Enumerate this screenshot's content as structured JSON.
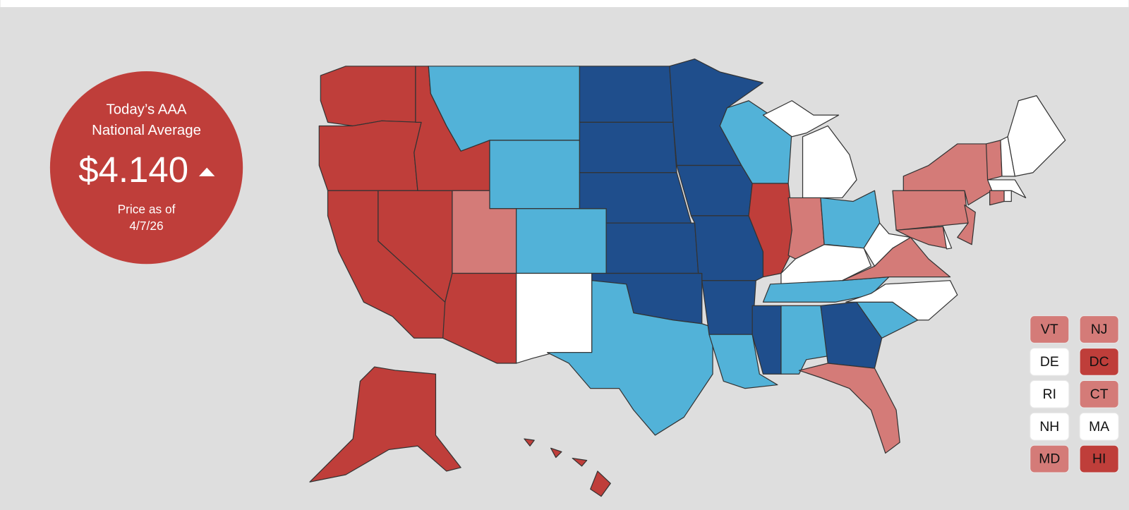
{
  "badge": {
    "line1": "Today’s AAA",
    "line2": "National Average",
    "price": "$4.140",
    "note_line1": "Price as of",
    "note_line2": "4/7/26"
  },
  "small_states": [
    {
      "label": "VT",
      "color": "#d47b78"
    },
    {
      "label": "NJ",
      "color": "#d47b78"
    },
    {
      "label": "DE",
      "color": "#ffffff"
    },
    {
      "label": "DC",
      "color": "#bf3e3a"
    },
    {
      "label": "RI",
      "color": "#ffffff"
    },
    {
      "label": "CT",
      "color": "#d47b78"
    },
    {
      "label": "NH",
      "color": "#ffffff"
    },
    {
      "label": "MA",
      "color": "#ffffff"
    },
    {
      "label": "MD",
      "color": "#d47b78"
    },
    {
      "label": "HI",
      "color": "#bf3e3a"
    }
  ]
}
